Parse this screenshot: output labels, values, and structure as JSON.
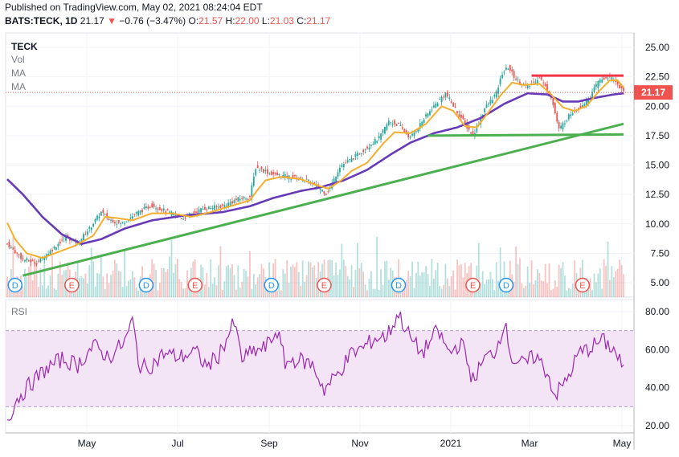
{
  "header": {
    "published": "Published on TradingView.com, May 02, 2021 08:24:04 EDT",
    "symbol_line": "BATS:TECK, 1D",
    "last": "21.17",
    "change": "−0.76 (−3.47%)",
    "o_label": "O:",
    "o_val": "21.57",
    "h_label": "H:",
    "h_val": "22.00",
    "l_label": "L:",
    "l_val": "21.03",
    "c_label": "C:",
    "c_val": "21.17"
  },
  "legend": {
    "ticker": "TECK",
    "vol": "Vol",
    "ma1": "MA",
    "ma2": "MA",
    "rsi": "RSI"
  },
  "colors": {
    "up": "#26a69a",
    "down": "#ef5350",
    "ma_fast": "#f6ae2d",
    "ma_slow": "#673ab7",
    "trend": "#4caf50",
    "resistance": "#f23645",
    "rsi_line": "#9c27b0",
    "rsi_band": "#f3e5f5"
  },
  "chart_data": [
    {
      "type": "candlestick",
      "title": "TECK",
      "y_ticks": [
        "25.00",
        "22.50",
        "20.00",
        "17.50",
        "15.00",
        "12.50",
        "10.00",
        "7.50",
        "5.00"
      ],
      "x_labels": [
        "May",
        "Jul",
        "Sep",
        "Nov",
        "2021",
        "Mar",
        "May"
      ],
      "last_price_label": "21.17",
      "ylim": [
        4.2,
        26.2
      ],
      "close_keypoints": [
        [
          0,
          8.3
        ],
        [
          8,
          7.0
        ],
        [
          15,
          6.7
        ],
        [
          22,
          7.7
        ],
        [
          30,
          8.9
        ],
        [
          36,
          8.4
        ],
        [
          42,
          9.6
        ],
        [
          48,
          11.0
        ],
        [
          52,
          10.4
        ],
        [
          58,
          10.0
        ],
        [
          66,
          10.9
        ],
        [
          74,
          11.6
        ],
        [
          82,
          11.0
        ],
        [
          90,
          10.5
        ],
        [
          100,
          11.3
        ],
        [
          110,
          11.5
        ],
        [
          118,
          12.1
        ],
        [
          124,
          12.3
        ],
        [
          127,
          14.8
        ],
        [
          130,
          14.6
        ],
        [
          136,
          14.2
        ],
        [
          144,
          14.0
        ],
        [
          152,
          13.8
        ],
        [
          158,
          13.2
        ],
        [
          163,
          12.6
        ],
        [
          166,
          13.4
        ],
        [
          170,
          14.9
        ],
        [
          176,
          15.5
        ],
        [
          183,
          16.4
        ],
        [
          190,
          17.3
        ],
        [
          195,
          18.7
        ],
        [
          200,
          18.4
        ],
        [
          206,
          17.3
        ],
        [
          212,
          18.7
        ],
        [
          218,
          20.0
        ],
        [
          224,
          21.1
        ],
        [
          230,
          19.5
        ],
        [
          238,
          17.5
        ],
        [
          244,
          19.8
        ],
        [
          250,
          21.1
        ],
        [
          253,
          22.8
        ],
        [
          256,
          23.3
        ],
        [
          260,
          22.3
        ],
        [
          266,
          21.6
        ],
        [
          272,
          22.5
        ],
        [
          278,
          20.8
        ],
        [
          282,
          18.0
        ],
        [
          288,
          19.4
        ],
        [
          293,
          20.0
        ],
        [
          298,
          20.8
        ],
        [
          302,
          22.1
        ],
        [
          307,
          22.5
        ],
        [
          311,
          22.1
        ],
        [
          315,
          21.17
        ]
      ],
      "ma_fast_keypoints": [
        [
          0,
          10.1
        ],
        [
          4,
          8.7
        ],
        [
          10,
          7.5
        ],
        [
          18,
          7.1
        ],
        [
          26,
          7.6
        ],
        [
          34,
          8.1
        ],
        [
          44,
          9.0
        ],
        [
          50,
          10.6
        ],
        [
          56,
          10.5
        ],
        [
          64,
          10.3
        ],
        [
          74,
          10.9
        ],
        [
          84,
          10.9
        ],
        [
          94,
          10.6
        ],
        [
          104,
          11.0
        ],
        [
          118,
          11.7
        ],
        [
          124,
          12.0
        ],
        [
          128,
          12.9
        ],
        [
          132,
          13.7
        ],
        [
          140,
          14.0
        ],
        [
          150,
          13.8
        ],
        [
          158,
          13.3
        ],
        [
          164,
          13.0
        ],
        [
          170,
          13.6
        ],
        [
          176,
          14.5
        ],
        [
          184,
          15.2
        ],
        [
          192,
          16.8
        ],
        [
          198,
          17.8
        ],
        [
          206,
          17.7
        ],
        [
          214,
          18.5
        ],
        [
          222,
          20.0
        ],
        [
          228,
          19.6
        ],
        [
          234,
          18.3
        ],
        [
          240,
          18.2
        ],
        [
          246,
          19.5
        ],
        [
          252,
          20.9
        ],
        [
          258,
          22.0
        ],
        [
          264,
          21.8
        ],
        [
          272,
          21.9
        ],
        [
          278,
          21.0
        ],
        [
          284,
          19.9
        ],
        [
          290,
          19.6
        ],
        [
          296,
          20.0
        ],
        [
          302,
          21.2
        ],
        [
          308,
          22.2
        ],
        [
          312,
          22.2
        ],
        [
          315,
          21.6
        ]
      ],
      "ma_slow_keypoints": [
        [
          0,
          13.8
        ],
        [
          8,
          12.5
        ],
        [
          18,
          10.6
        ],
        [
          28,
          9.1
        ],
        [
          38,
          8.3
        ],
        [
          48,
          8.7
        ],
        [
          60,
          9.6
        ],
        [
          74,
          10.3
        ],
        [
          90,
          10.7
        ],
        [
          110,
          11.0
        ],
        [
          124,
          11.5
        ],
        [
          136,
          12.2
        ],
        [
          150,
          12.8
        ],
        [
          160,
          13.1
        ],
        [
          172,
          13.7
        ],
        [
          184,
          14.6
        ],
        [
          196,
          15.9
        ],
        [
          206,
          16.9
        ],
        [
          218,
          17.7
        ],
        [
          230,
          18.2
        ],
        [
          242,
          19.0
        ],
        [
          254,
          20.2
        ],
        [
          266,
          21.1
        ],
        [
          276,
          21.0
        ],
        [
          284,
          20.4
        ],
        [
          292,
          20.4
        ],
        [
          300,
          20.7
        ],
        [
          310,
          21.0
        ],
        [
          315,
          21.1
        ]
      ],
      "trendlines": [
        {
          "name": "support",
          "from": [
            8,
            5.6
          ],
          "to": [
            315,
            18.5
          ]
        },
        {
          "name": "horizontal-support",
          "from": [
            215,
            17.5
          ],
          "to": [
            315,
            17.6
          ]
        },
        {
          "name": "resistance",
          "from": [
            268,
            22.6
          ],
          "to": [
            315,
            22.6
          ]
        }
      ],
      "event_markers": [
        {
          "label": "D",
          "bar": 4
        },
        {
          "label": "E",
          "bar": 33
        },
        {
          "label": "D",
          "bar": 71
        },
        {
          "label": "E",
          "bar": 96
        },
        {
          "label": "D",
          "bar": 135
        },
        {
          "label": "E",
          "bar": 162
        },
        {
          "label": "D",
          "bar": 200
        },
        {
          "label": "E",
          "bar": 238
        },
        {
          "label": "D",
          "bar": 255
        },
        {
          "label": "E",
          "bar": 294
        }
      ]
    },
    {
      "type": "line",
      "title": "RSI",
      "y_ticks": [
        "80.00",
        "60.00",
        "40.00",
        "20.00"
      ],
      "ylim": [
        17,
        84
      ],
      "band": [
        30,
        70
      ],
      "keypoints": [
        [
          0,
          23
        ],
        [
          5,
          34
        ],
        [
          12,
          42
        ],
        [
          20,
          50
        ],
        [
          28,
          55
        ],
        [
          36,
          52
        ],
        [
          44,
          62
        ],
        [
          52,
          56
        ],
        [
          60,
          64
        ],
        [
          64,
          75
        ],
        [
          68,
          50
        ],
        [
          74,
          52
        ],
        [
          80,
          58
        ],
        [
          88,
          56
        ],
        [
          96,
          59
        ],
        [
          102,
          51
        ],
        [
          108,
          57
        ],
        [
          116,
          74
        ],
        [
          120,
          55
        ],
        [
          126,
          59
        ],
        [
          132,
          61
        ],
        [
          138,
          70
        ],
        [
          142,
          53
        ],
        [
          148,
          55
        ],
        [
          156,
          52
        ],
        [
          162,
          39
        ],
        [
          168,
          46
        ],
        [
          176,
          58
        ],
        [
          182,
          61
        ],
        [
          188,
          66
        ],
        [
          194,
          67
        ],
        [
          200,
          79
        ],
        [
          206,
          66
        ],
        [
          212,
          58
        ],
        [
          220,
          70
        ],
        [
          226,
          58
        ],
        [
          232,
          64
        ],
        [
          238,
          44
        ],
        [
          244,
          55
        ],
        [
          250,
          60
        ],
        [
          254,
          75
        ],
        [
          258,
          55
        ],
        [
          264,
          52
        ],
        [
          270,
          57
        ],
        [
          276,
          48
        ],
        [
          280,
          36
        ],
        [
          286,
          44
        ],
        [
          292,
          58
        ],
        [
          298,
          61
        ],
        [
          304,
          65
        ],
        [
          310,
          60
        ],
        [
          315,
          50
        ]
      ]
    }
  ]
}
